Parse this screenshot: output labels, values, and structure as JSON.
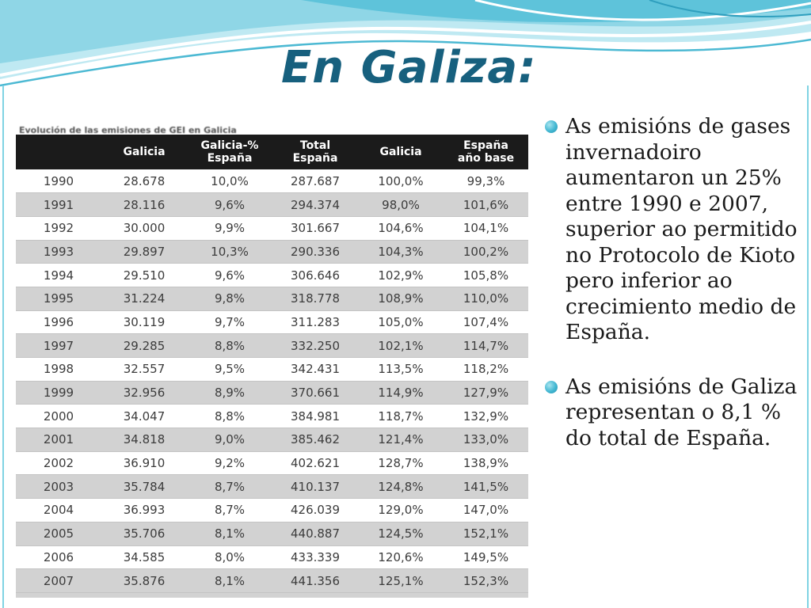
{
  "slide": {
    "title": "En Galiza:",
    "table_caption": "Evolución de las emisiones de GEI en Galicia"
  },
  "table": {
    "headers": [
      {
        "line1": "",
        "line2": ""
      },
      {
        "line1": "Galicia",
        "line2": ""
      },
      {
        "line1": "Galicia-%",
        "line2": "España"
      },
      {
        "line1": "Total",
        "line2": "España"
      },
      {
        "line1": "Galicia",
        "line2": ""
      },
      {
        "line1": "España",
        "line2": "año base"
      }
    ],
    "rows": [
      [
        "1990",
        "28.678",
        "10,0%",
        "287.687",
        "100,0%",
        "99,3%"
      ],
      [
        "1991",
        "28.116",
        "9,6%",
        "294.374",
        "98,0%",
        "101,6%"
      ],
      [
        "1992",
        "30.000",
        "9,9%",
        "301.667",
        "104,6%",
        "104,1%"
      ],
      [
        "1993",
        "29.897",
        "10,3%",
        "290.336",
        "104,3%",
        "100,2%"
      ],
      [
        "1994",
        "29.510",
        "9,6%",
        "306.646",
        "102,9%",
        "105,8%"
      ],
      [
        "1995",
        "31.224",
        "9,8%",
        "318.778",
        "108,9%",
        "110,0%"
      ],
      [
        "1996",
        "30.119",
        "9,7%",
        "311.283",
        "105,0%",
        "107,4%"
      ],
      [
        "1997",
        "29.285",
        "8,8%",
        "332.250",
        "102,1%",
        "114,7%"
      ],
      [
        "1998",
        "32.557",
        "9,5%",
        "342.431",
        "113,5%",
        "118,2%"
      ],
      [
        "1999",
        "32.956",
        "8,9%",
        "370.661",
        "114,9%",
        "127,9%"
      ],
      [
        "2000",
        "34.047",
        "8,8%",
        "384.981",
        "118,7%",
        "132,9%"
      ],
      [
        "2001",
        "34.818",
        "9,0%",
        "385.462",
        "121,4%",
        "133,0%"
      ],
      [
        "2002",
        "36.910",
        "9,2%",
        "402.621",
        "128,7%",
        "138,9%"
      ],
      [
        "2003",
        "35.784",
        "8,7%",
        "410.137",
        "124,8%",
        "141,5%"
      ],
      [
        "2004",
        "36.993",
        "8,7%",
        "426.039",
        "129,0%",
        "147,0%"
      ],
      [
        "2005",
        "35.706",
        "8,1%",
        "440.887",
        "124,5%",
        "152,1%"
      ],
      [
        "2006",
        "34.585",
        "8,0%",
        "433.339",
        "120,6%",
        "149,5%"
      ],
      [
        "2007",
        "35.876",
        "8,1%",
        "441.356",
        "125,1%",
        "152,3%"
      ]
    ]
  },
  "bullets": [
    "As emisións de gases invernadoiro aumentaron un 25% entre 1990 e 2007, superior ao permitido no Protocolo de Kioto pero inferior ao crecimiento medio de España.",
    "As emisións de Galiza representan o 8,1 % do total de España."
  ],
  "colors": {
    "title": "#17607e",
    "wave_light": "#bfe9f2",
    "wave_mid": "#5ec3da",
    "bullet": "#42b7d2",
    "header_bg": "#1b1b1b",
    "row_alt": "#d2d2d2"
  }
}
